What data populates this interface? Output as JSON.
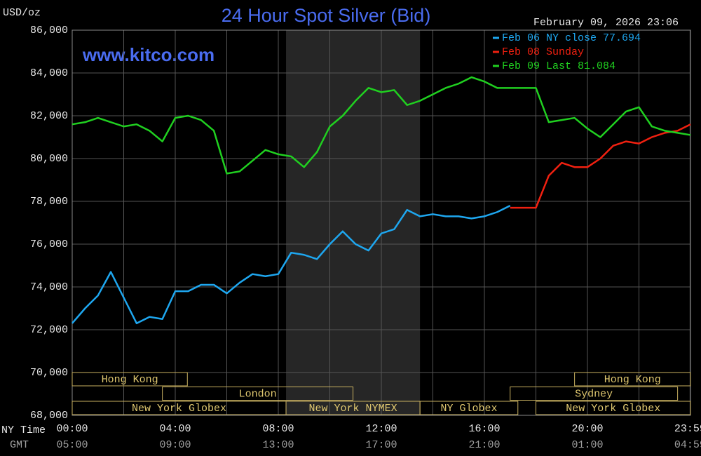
{
  "chart_data": {
    "type": "line",
    "title": "24 Hour Spot Silver (Bid)",
    "date": "February 09, 2026 23:06",
    "website": "www.kitco.com",
    "y_label": "USD/oz",
    "row_labels": [
      "NY Time",
      "GMT"
    ],
    "x": [
      0,
      0.5,
      1,
      1.5,
      2,
      2.5,
      3,
      3.5,
      4,
      4.5,
      5,
      5.5,
      6,
      6.5,
      7,
      7.5,
      8,
      8.5,
      9,
      9.5,
      10,
      10.5,
      11,
      11.5,
      12,
      12.5,
      13,
      13.5,
      14,
      14.5,
      15,
      15.5,
      16,
      16.5,
      17,
      17.5,
      18,
      18.5,
      19,
      19.5,
      20,
      20.5,
      21,
      21.5,
      22,
      22.5,
      23,
      23.5,
      24
    ],
    "series": [
      {
        "name": "Feb 06 NY close 77.694",
        "color": "#1ea7f0",
        "values": [
          72300,
          73000,
          73600,
          74700,
          73500,
          72300,
          72600,
          72500,
          73800,
          73800,
          74100,
          74100,
          73700,
          74200,
          74600,
          74500,
          74600,
          75600,
          75500,
          75300,
          76000,
          76600,
          76000,
          75700,
          76500,
          76700,
          77600,
          77300,
          77400,
          77300,
          77300,
          77200,
          77300,
          77500,
          77800,
          null,
          null,
          null,
          null,
          null,
          null,
          null,
          null,
          null,
          null,
          null,
          null,
          null,
          null
        ]
      },
      {
        "name": "Feb 08 Sunday",
        "color": "#f02010",
        "values": [
          null,
          null,
          null,
          null,
          null,
          null,
          null,
          null,
          null,
          null,
          null,
          null,
          null,
          null,
          null,
          null,
          null,
          null,
          null,
          null,
          null,
          null,
          null,
          null,
          null,
          null,
          null,
          null,
          null,
          null,
          null,
          null,
          null,
          null,
          77700,
          77700,
          77700,
          79200,
          79800,
          79600,
          79600,
          80000,
          80600,
          80800,
          80700,
          81000,
          81200,
          81300,
          81600
        ]
      },
      {
        "name": "Feb 09 Last 81.084",
        "color": "#20d020",
        "values": [
          81600,
          81700,
          81900,
          81700,
          81500,
          81600,
          81300,
          80800,
          81900,
          82000,
          81800,
          81300,
          79300,
          79400,
          79900,
          80400,
          80200,
          80100,
          79600,
          80300,
          81500,
          82000,
          82700,
          83300,
          83100,
          83200,
          82500,
          82700,
          83000,
          83300,
          83500,
          83800,
          83600,
          83300,
          83300,
          83300,
          83300,
          81700,
          81800,
          81900,
          81400,
          81000,
          81600,
          82200,
          82400,
          81500,
          81300,
          81200,
          81100
        ]
      }
    ],
    "xlim": [
      0,
      24
    ],
    "xticks": [
      {
        "value": 0,
        "label": "00:00"
      },
      {
        "value": 4,
        "label": "04:00"
      },
      {
        "value": 8,
        "label": "08:00"
      },
      {
        "value": 12,
        "label": "12:00"
      },
      {
        "value": 16,
        "label": "16:00"
      },
      {
        "value": 20,
        "label": "20:00"
      },
      {
        "value": 23.983,
        "label": "23:59"
      }
    ],
    "gmt_ticks": [
      "05:00",
      "09:00",
      "13:00",
      "17:00",
      "21:00",
      "01:00",
      "04:59"
    ],
    "x_minor_ticks": [
      2,
      6,
      10,
      14,
      18,
      22
    ],
    "ylim": [
      68000,
      86000
    ],
    "yticks": [
      {
        "value": 68000,
        "label": "68,000"
      },
      {
        "value": 70000,
        "label": "70,000"
      },
      {
        "value": 72000,
        "label": "72,000"
      },
      {
        "value": 74000,
        "label": "74,000"
      },
      {
        "value": 76000,
        "label": "76,000"
      },
      {
        "value": 78000,
        "label": "78,000"
      },
      {
        "value": 80000,
        "label": "80,000"
      },
      {
        "value": 82000,
        "label": "82,000"
      },
      {
        "value": 84000,
        "label": "84,000"
      },
      {
        "value": 86000,
        "label": "86,000"
      }
    ],
    "grid": true,
    "shaded": [
      8.3,
      13.5
    ],
    "session_rows": [
      [
        {
          "label": "Hong Kong",
          "start": 0,
          "end": 4.47
        },
        {
          "label": "Hong Kong",
          "start": 19.5,
          "end": 24
        }
      ],
      [
        {
          "label": "London",
          "start": 3.5,
          "end": 10.9
        },
        {
          "label": "Sydney",
          "start": 17,
          "end": 23.5
        }
      ],
      [
        {
          "label": "New York Globex",
          "start": 0,
          "end": 8.3
        },
        {
          "label": "New York NYMEX",
          "start": 8.3,
          "end": 13.5
        },
        {
          "label": "NY Globex",
          "start": 13.5,
          "end": 17.3
        },
        {
          "label": "New York Globex",
          "start": 18,
          "end": 24
        }
      ]
    ]
  }
}
